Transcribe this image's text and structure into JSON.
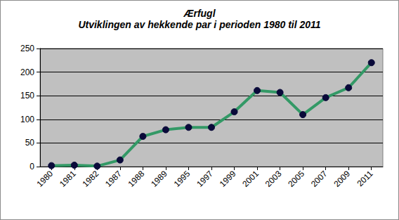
{
  "chart_data": {
    "type": "line",
    "title": "Ærfugl",
    "subtitle": "Utviklingen av hekkende par i perioden 1980 til 2011",
    "categories": [
      "1980",
      "1981",
      "1982",
      "1987",
      "1988",
      "1989",
      "1995",
      "1997",
      "1999",
      "2001",
      "2003",
      "2005",
      "2007",
      "2009",
      "2011"
    ],
    "values": [
      2,
      3,
      1,
      14,
      64,
      78,
      83,
      83,
      116,
      161,
      157,
      110,
      146,
      167,
      220
    ],
    "color": "#339966",
    "marker": "circle",
    "line_style": "solid",
    "ylim": [
      0,
      250
    ],
    "yticks": [
      0,
      50,
      100,
      150,
      200,
      250
    ],
    "grid": true
  }
}
